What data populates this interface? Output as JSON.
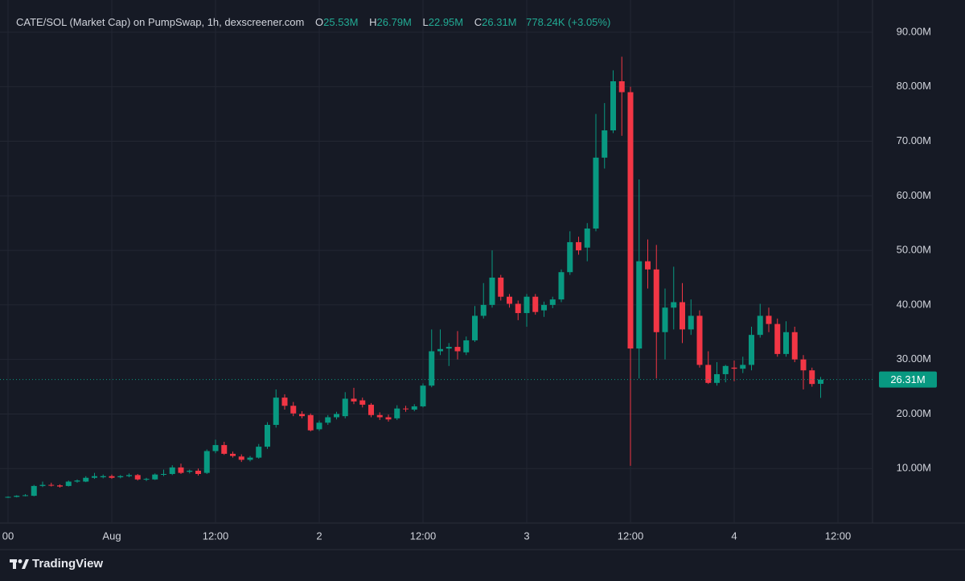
{
  "header": {
    "symbol": "CATE/SOL (Market Cap) on PumpSwap, 1h, dexscreener.com",
    "open_key": "O",
    "open": "25.53M",
    "high_key": "H",
    "high": "26.79M",
    "low_key": "L",
    "low": "22.95M",
    "close_key": "C",
    "close": "26.31M",
    "change": "778.24K (+3.05%)"
  },
  "footer": {
    "brand": "TradingView"
  },
  "chart_data": {
    "type": "candlestick",
    "up_color": "#089981",
    "down_color": "#f23645",
    "grid": true,
    "xlim": [
      -12.93,
      88
    ],
    "ylim": [
      0,
      95.9
    ],
    "xticks": [
      {
        "value": -12,
        "label": "00"
      },
      {
        "value": 0,
        "label": "Aug"
      },
      {
        "value": 12,
        "label": "12:00"
      },
      {
        "value": 24,
        "label": "2"
      },
      {
        "value": 36,
        "label": "12:00"
      },
      {
        "value": 48,
        "label": "3"
      },
      {
        "value": 60,
        "label": "12:00"
      },
      {
        "value": 72,
        "label": "4"
      },
      {
        "value": 84,
        "label": "12:00"
      }
    ],
    "yticks": [
      {
        "value": 10,
        "label": "10.00M"
      },
      {
        "value": 20,
        "label": "20.00M"
      },
      {
        "value": 30,
        "label": "30.00M"
      },
      {
        "value": 40,
        "label": "40.00M"
      },
      {
        "value": 50,
        "label": "50.00M"
      },
      {
        "value": 60,
        "label": "60.00M"
      },
      {
        "value": 70,
        "label": "70.00M"
      },
      {
        "value": 80,
        "label": "80.00M"
      },
      {
        "value": 90,
        "label": "90.00M"
      }
    ],
    "last_price": {
      "value": 26.31,
      "label": "26.31M"
    },
    "x": [
      -12,
      -11,
      -10,
      -9,
      -8,
      -7,
      -6,
      -5,
      -4,
      -3,
      -2,
      -1,
      0,
      1,
      2,
      3,
      4,
      5,
      6,
      7,
      8,
      9,
      10,
      11,
      12,
      13,
      14,
      15,
      16,
      17,
      18,
      19,
      20,
      21,
      22,
      23,
      24,
      25,
      26,
      27,
      28,
      29,
      30,
      31,
      32,
      33,
      34,
      35,
      36,
      37,
      38,
      39,
      40,
      41,
      42,
      43,
      44,
      45,
      46,
      47,
      48,
      49,
      50,
      51,
      52,
      53,
      54,
      55,
      56,
      57,
      58,
      59,
      60,
      61,
      62,
      63,
      64,
      65,
      66,
      67,
      68,
      69,
      70,
      71,
      72,
      73,
      74,
      75,
      76,
      77,
      78,
      79,
      80,
      81,
      82
    ],
    "open": [
      4.7,
      4.8,
      5.0,
      5.0,
      6.8,
      7.0,
      6.9,
      6.8,
      7.6,
      7.6,
      8.3,
      8.4,
      8.6,
      8.4,
      8.6,
      8.8,
      8.0,
      8.0,
      8.9,
      9.0,
      10.2,
      9.4,
      9.6,
      9.2,
      13.2,
      14.3,
      12.7,
      12.2,
      11.6,
      12.0,
      14.0,
      18.0,
      23.0,
      21.5,
      20.0,
      19.8,
      17.2,
      18.4,
      19.4,
      19.6,
      22.8,
      22.5,
      21.7,
      19.8,
      19.4,
      19.2,
      21.0,
      20.8,
      21.4,
      25.2,
      31.5,
      32.0,
      32.3,
      31.3,
      33.5,
      38.0,
      40.0,
      45.0,
      41.5,
      40.2,
      38.5,
      41.5,
      39.0,
      40.0,
      41.0,
      46.0,
      51.5,
      50.5,
      54.0,
      67.0,
      72.0,
      81.0,
      79.0,
      32.0,
      48.0,
      46.5,
      35.0,
      39.5,
      40.5,
      35.5,
      38.0,
      29.0,
      25.7,
      27.3,
      28.5,
      28.3,
      29.0,
      34.5,
      38.0,
      36.5,
      31.0,
      35.0,
      30.0,
      28.0,
      25.53
    ],
    "high": [
      4.9,
      5.1,
      5.3,
      7.0,
      7.6,
      7.4,
      7.1,
      7.8,
      8.0,
      8.6,
      9.2,
      8.9,
      8.9,
      8.8,
      9.1,
      9.0,
      8.3,
      9.1,
      9.8,
      10.6,
      10.9,
      9.8,
      10.0,
      13.5,
      15.3,
      14.9,
      13.1,
      12.6,
      12.3,
      14.5,
      18.5,
      24.5,
      23.6,
      22.2,
      20.5,
      20.1,
      18.8,
      19.8,
      20.4,
      24.0,
      24.8,
      23.0,
      22.0,
      20.3,
      19.9,
      21.6,
      21.5,
      21.8,
      25.6,
      35.5,
      35.5,
      33.0,
      35.2,
      34.2,
      39.8,
      44.0,
      50.0,
      45.5,
      42.0,
      40.8,
      42.0,
      42.0,
      40.6,
      41.5,
      46.5,
      53.5,
      52.5,
      55.0,
      75.0,
      77.0,
      83.0,
      85.5,
      80.0,
      63.0,
      52.0,
      51.0,
      43.0,
      47.0,
      44.0,
      41.0,
      39.0,
      31.5,
      29.5,
      29.0,
      29.8,
      30.5,
      36.0,
      40.2,
      39.5,
      37.5,
      37.0,
      36.0,
      30.8,
      28.5,
      26.79
    ],
    "low": [
      4.6,
      4.7,
      4.9,
      4.9,
      6.6,
      6.7,
      6.5,
      6.7,
      7.4,
      7.5,
      8.1,
      8.2,
      8.1,
      8.2,
      8.4,
      7.8,
      7.7,
      7.9,
      8.6,
      8.8,
      9.0,
      9.1,
      8.7,
      9.0,
      12.8,
      12.5,
      12.0,
      11.2,
      11.3,
      11.8,
      13.6,
      17.5,
      20.8,
      19.6,
      19.2,
      16.8,
      16.9,
      18.0,
      19.0,
      19.2,
      21.8,
      21.2,
      19.4,
      18.9,
      18.6,
      18.9,
      20.4,
      20.5,
      21.2,
      24.9,
      30.8,
      28.8,
      30.0,
      30.8,
      33.2,
      37.5,
      39.5,
      40.8,
      39.5,
      37.2,
      36.0,
      38.2,
      37.8,
      39.4,
      40.5,
      45.5,
      49.2,
      48.0,
      53.5,
      65.0,
      71.5,
      71.0,
      10.5,
      26.5,
      43.0,
      26.5,
      30.0,
      35.5,
      33.0,
      34.5,
      28.5,
      25.5,
      25.2,
      25.8,
      26.0,
      27.5,
      28.0,
      34.0,
      35.0,
      30.5,
      30.5,
      29.5,
      24.5,
      25.0,
      22.95
    ],
    "close": [
      4.8,
      5.0,
      5.1,
      6.8,
      7.0,
      6.9,
      6.7,
      7.6,
      7.8,
      8.3,
      8.6,
      8.6,
      8.3,
      8.6,
      8.8,
      8.0,
      8.1,
      8.9,
      9.0,
      10.2,
      9.2,
      9.6,
      9.0,
      13.2,
      14.3,
      12.7,
      12.3,
      11.6,
      12.0,
      14.0,
      18.0,
      23.0,
      21.5,
      20.1,
      19.6,
      17.0,
      18.4,
      19.4,
      20.0,
      22.8,
      22.3,
      21.7,
      19.8,
      19.4,
      19.0,
      21.0,
      20.9,
      21.4,
      25.2,
      31.5,
      31.9,
      32.3,
      31.5,
      33.5,
      38.0,
      40.0,
      45.0,
      41.5,
      40.2,
      38.5,
      41.5,
      38.7,
      40.0,
      41.0,
      46.0,
      51.5,
      50.0,
      54.0,
      67.0,
      72.0,
      81.0,
      79.0,
      32.0,
      48.0,
      46.5,
      35.0,
      39.5,
      40.5,
      35.5,
      38.0,
      29.0,
      25.7,
      27.3,
      28.8,
      28.3,
      29.0,
      34.5,
      38.0,
      36.5,
      31.0,
      35.0,
      30.0,
      28.0,
      25.5,
      26.31
    ]
  }
}
